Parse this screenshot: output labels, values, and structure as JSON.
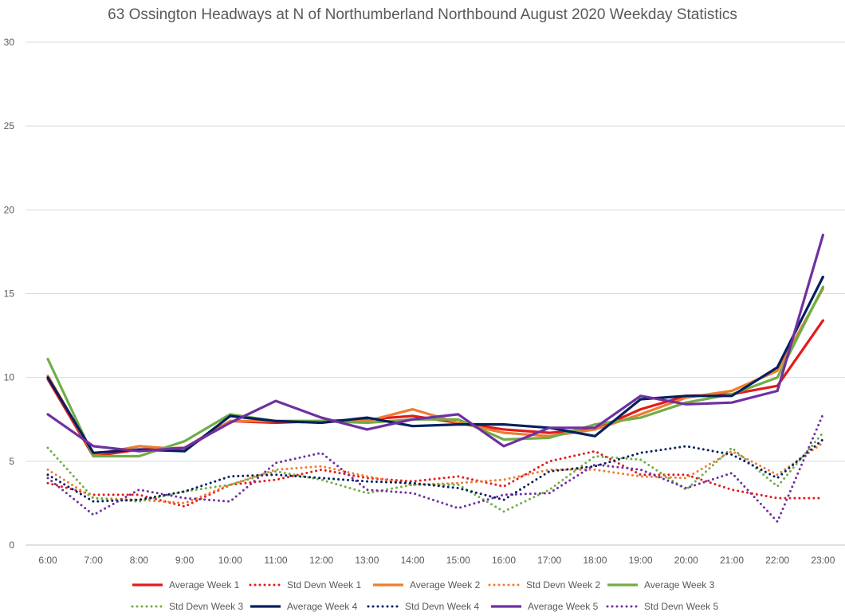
{
  "chart_data": {
    "type": "line",
    "title": "63 Ossington Headways at N of Northumberland Northbound August 2020 Weekday Statistics",
    "xlabel": "",
    "ylabel": "",
    "ylim": [
      0,
      30
    ],
    "yticks": [
      0,
      5,
      10,
      15,
      20,
      25,
      30
    ],
    "grid": true,
    "legend_position": "bottom",
    "categories": [
      "6:00",
      "7:00",
      "8:00",
      "9:00",
      "10:00",
      "11:00",
      "12:00",
      "13:00",
      "14:00",
      "15:00",
      "16:00",
      "17:00",
      "18:00",
      "19:00",
      "20:00",
      "21:00",
      "22:00",
      "23:00"
    ],
    "series": [
      {
        "name": "Average Week 1",
        "style": "solid",
        "color": "#e31a1c",
        "values": [
          9.9,
          5.3,
          5.7,
          5.8,
          7.4,
          7.3,
          7.4,
          7.5,
          7.7,
          7.3,
          6.9,
          6.7,
          6.9,
          8.1,
          8.9,
          9.0,
          9.5,
          13.4
        ]
      },
      {
        "name": "Std Devn Week 1",
        "style": "dotted",
        "color": "#e31a1c",
        "values": [
          3.7,
          3.0,
          3.0,
          2.3,
          3.6,
          3.9,
          4.5,
          4.0,
          3.8,
          4.1,
          3.5,
          5.0,
          5.6,
          4.2,
          4.2,
          3.3,
          2.8,
          2.8
        ]
      },
      {
        "name": "Average Week 2",
        "style": "solid",
        "color": "#ed7d31",
        "values": [
          10.1,
          5.4,
          5.9,
          5.7,
          7.4,
          7.4,
          7.4,
          7.4,
          8.1,
          7.3,
          6.7,
          6.5,
          6.9,
          7.8,
          8.8,
          9.2,
          10.4,
          15.3
        ]
      },
      {
        "name": "Std Devn Week 2",
        "style": "dotted",
        "color": "#ed7d31",
        "values": [
          4.5,
          2.8,
          2.7,
          2.5,
          3.6,
          4.5,
          4.7,
          4.1,
          3.6,
          3.7,
          3.9,
          4.5,
          4.5,
          4.1,
          4.0,
          5.6,
          4.2,
          6.1
        ]
      },
      {
        "name": "Average Week 3",
        "style": "solid",
        "color": "#70ad47",
        "values": [
          11.1,
          5.3,
          5.3,
          6.2,
          7.8,
          7.4,
          7.4,
          7.3,
          7.5,
          7.5,
          6.3,
          6.4,
          7.2,
          7.6,
          8.5,
          9.0,
          10.0,
          15.4
        ]
      },
      {
        "name": "Std Devn Week 3",
        "style": "dotted",
        "color": "#70ad47",
        "values": [
          5.8,
          2.8,
          2.6,
          3.2,
          3.6,
          4.4,
          3.9,
          3.1,
          3.6,
          3.6,
          2.0,
          3.3,
          5.3,
          5.1,
          3.3,
          5.8,
          3.5,
          6.7
        ]
      },
      {
        "name": "Average Week 4",
        "style": "solid",
        "color": "#002060",
        "values": [
          10.0,
          5.5,
          5.7,
          5.6,
          7.7,
          7.4,
          7.3,
          7.6,
          7.1,
          7.2,
          7.2,
          7.0,
          6.5,
          8.7,
          8.9,
          8.9,
          10.6,
          16.0
        ]
      },
      {
        "name": "Std Devn Week 4",
        "style": "dotted",
        "color": "#002060",
        "values": [
          4.2,
          2.6,
          2.7,
          3.2,
          4.1,
          4.2,
          4.0,
          3.8,
          3.7,
          3.4,
          2.7,
          4.4,
          4.7,
          5.5,
          5.9,
          5.4,
          4.0,
          6.3
        ]
      },
      {
        "name": "Average Week 5",
        "style": "solid",
        "color": "#7030a0",
        "values": [
          7.8,
          5.9,
          5.6,
          5.8,
          7.3,
          8.6,
          7.6,
          6.9,
          7.5,
          7.8,
          5.9,
          7.0,
          7.0,
          8.9,
          8.4,
          8.5,
          9.2,
          18.5
        ]
      },
      {
        "name": "Std Devn Week 5",
        "style": "dotted",
        "color": "#7030a0",
        "values": [
          4.0,
          1.8,
          3.3,
          2.8,
          2.6,
          4.9,
          5.5,
          3.3,
          3.1,
          2.2,
          3.0,
          3.1,
          4.8,
          4.5,
          3.4,
          4.3,
          1.4,
          7.8
        ]
      }
    ]
  }
}
